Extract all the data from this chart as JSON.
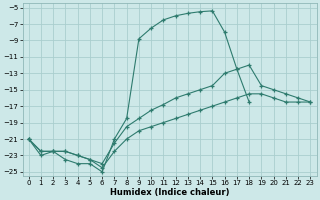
{
  "xlabel": "Humidex (Indice chaleur)",
  "background_color": "#cde8e8",
  "grid_color": "#aacece",
  "line_color": "#2e7b6e",
  "ylim": [
    -25.5,
    -4.5
  ],
  "xlim": [
    -0.5,
    23.5
  ],
  "yticks": [
    -5,
    -7,
    -9,
    -11,
    -13,
    -15,
    -17,
    -19,
    -21,
    -23,
    -25
  ],
  "xticks": [
    0,
    1,
    2,
    3,
    4,
    5,
    6,
    7,
    8,
    9,
    10,
    11,
    12,
    13,
    14,
    15,
    16,
    17,
    18,
    19,
    20,
    21,
    22,
    23
  ],
  "line1_x": [
    0,
    1,
    2,
    3,
    4,
    5,
    6,
    7,
    8,
    9,
    10,
    11,
    12,
    13,
    14,
    15,
    16,
    17,
    18
  ],
  "line1_y": [
    -21,
    -23,
    -22.5,
    -23.5,
    -24,
    -24,
    -25,
    -21,
    -18.5,
    -8.8,
    -7.5,
    -6.5,
    -6.0,
    -5.7,
    -5.5,
    -5.4,
    -8.0,
    -12.5,
    -16.5
  ],
  "line2_x": [
    0,
    1,
    2,
    3,
    4,
    5,
    6,
    7,
    8,
    9,
    10,
    11,
    12,
    13,
    14,
    15,
    16,
    17,
    18,
    19,
    20,
    21,
    22,
    23
  ],
  "line2_y": [
    -21,
    -22.5,
    -22.5,
    -22.5,
    -23.0,
    -23.5,
    -24.0,
    -21.5,
    -19.5,
    -18.5,
    -17.5,
    -16.8,
    -16.0,
    -15.5,
    -15.0,
    -14.5,
    -13.0,
    -12.5,
    -12.0,
    -14.5,
    -15.0,
    -15.5,
    -16.0,
    -16.5
  ],
  "line3_x": [
    0,
    1,
    2,
    3,
    4,
    5,
    6,
    7,
    8,
    9,
    10,
    11,
    12,
    13,
    14,
    15,
    16,
    17,
    18,
    19,
    20,
    21,
    22,
    23
  ],
  "line3_y": [
    -21,
    -22.5,
    -22.5,
    -22.5,
    -23.0,
    -23.5,
    -24.5,
    -22.5,
    -21.0,
    -20.0,
    -19.5,
    -19.0,
    -18.5,
    -18.0,
    -17.5,
    -17.0,
    -16.5,
    -16.0,
    -15.5,
    -15.5,
    -16.0,
    -16.5,
    -16.5,
    -16.5
  ]
}
